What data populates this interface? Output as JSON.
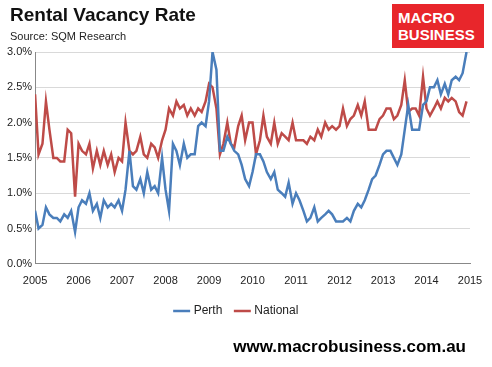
{
  "chart_data": {
    "type": "line",
    "title": "Rental Vacancy Rate",
    "subtitle": "Source: SQM Research",
    "annotations": [
      "MACRO",
      "BUSINESS",
      "www.macrobusiness.com.au"
    ],
    "x": [
      2005,
      2005.08,
      2005.17,
      2005.25,
      2005.33,
      2005.42,
      2005.5,
      2005.58,
      2005.67,
      2005.75,
      2005.83,
      2005.92,
      2006,
      2006.08,
      2006.17,
      2006.25,
      2006.33,
      2006.42,
      2006.5,
      2006.58,
      2006.67,
      2006.75,
      2006.83,
      2006.92,
      2007,
      2007.08,
      2007.17,
      2007.25,
      2007.33,
      2007.42,
      2007.5,
      2007.58,
      2007.67,
      2007.75,
      2007.83,
      2007.92,
      2008,
      2008.08,
      2008.17,
      2008.25,
      2008.33,
      2008.42,
      2008.5,
      2008.58,
      2008.67,
      2008.75,
      2008.83,
      2008.92,
      2009,
      2009.08,
      2009.17,
      2009.25,
      2009.33,
      2009.42,
      2009.5,
      2009.58,
      2009.67,
      2009.75,
      2009.83,
      2009.92,
      2010,
      2010.08,
      2010.17,
      2010.25,
      2010.33,
      2010.42,
      2010.5,
      2010.58,
      2010.67,
      2010.75,
      2010.83,
      2010.92,
      2011,
      2011.08,
      2011.17,
      2011.25,
      2011.33,
      2011.42,
      2011.5,
      2011.58,
      2011.67,
      2011.75,
      2011.83,
      2011.92,
      2012,
      2012.08,
      2012.17,
      2012.25,
      2012.33,
      2012.42,
      2012.5,
      2012.58,
      2012.67,
      2012.75,
      2012.83,
      2012.92,
      2013,
      2013.08,
      2013.17,
      2013.25,
      2013.33,
      2013.42,
      2013.5,
      2013.58,
      2013.67,
      2013.75,
      2013.83,
      2013.92,
      2014,
      2014.08,
      2014.17,
      2014.25,
      2014.33,
      2014.42,
      2014.5,
      2014.58,
      2014.67,
      2014.75,
      2014.83,
      2014.92
    ],
    "xlim": [
      2005,
      2015
    ],
    "xticks": [
      2005,
      2006,
      2007,
      2008,
      2009,
      2010,
      2011,
      2012,
      2013,
      2014,
      2015
    ],
    "ylim": [
      0,
      3
    ],
    "yticks": [
      {
        "value": 0,
        "label": "0.0%"
      },
      {
        "value": 0.5,
        "label": "0.5%"
      },
      {
        "value": 1,
        "label": "1.0%"
      },
      {
        "value": 1.5,
        "label": "1.5%"
      },
      {
        "value": 2,
        "label": "2.0%"
      },
      {
        "value": 2.5,
        "label": "2.5%"
      },
      {
        "value": 3,
        "label": "3.0%"
      }
    ],
    "grid": true,
    "legend": "bottom",
    "series": [
      {
        "name": "Perth",
        "color": "#4a7ebb",
        "values": [
          0.75,
          0.5,
          0.55,
          0.8,
          0.7,
          0.65,
          0.65,
          0.6,
          0.7,
          0.65,
          0.75,
          0.45,
          0.8,
          0.9,
          0.85,
          1.0,
          0.75,
          0.85,
          0.65,
          0.9,
          0.8,
          0.85,
          0.8,
          0.9,
          0.75,
          1.05,
          1.6,
          1.1,
          1.05,
          1.2,
          1.0,
          1.3,
          1.05,
          1.1,
          1.0,
          1.5,
          1.05,
          0.75,
          1.7,
          1.6,
          1.4,
          1.7,
          1.5,
          1.55,
          1.55,
          1.95,
          2.0,
          1.95,
          2.3,
          3.0,
          2.75,
          1.6,
          1.6,
          1.8,
          1.7,
          1.6,
          1.55,
          1.4,
          1.2,
          1.1,
          1.3,
          1.55,
          1.55,
          1.45,
          1.3,
          1.2,
          1.3,
          1.05,
          1.0,
          0.95,
          1.15,
          0.85,
          1.0,
          0.9,
          0.75,
          0.6,
          0.65,
          0.8,
          0.6,
          0.65,
          0.7,
          0.75,
          0.7,
          0.6,
          0.6,
          0.6,
          0.65,
          0.6,
          0.75,
          0.85,
          0.8,
          0.9,
          1.05,
          1.2,
          1.25,
          1.4,
          1.55,
          1.6,
          1.6,
          1.5,
          1.4,
          1.55,
          1.9,
          2.25,
          1.9,
          1.9,
          1.9,
          2.25,
          2.3,
          2.5,
          2.5,
          2.6,
          2.4,
          2.55,
          2.4,
          2.6,
          2.65,
          2.6,
          2.7,
          3.0
        ]
      },
      {
        "name": "National",
        "color": "#be4b48",
        "values": [
          2.4,
          1.55,
          1.7,
          2.3,
          1.9,
          1.5,
          1.5,
          1.45,
          1.45,
          1.9,
          1.85,
          0.95,
          1.7,
          1.6,
          1.55,
          1.7,
          1.35,
          1.6,
          1.4,
          1.6,
          1.4,
          1.55,
          1.3,
          1.5,
          1.45,
          2.0,
          1.6,
          1.55,
          1.6,
          1.8,
          1.55,
          1.5,
          1.7,
          1.65,
          1.5,
          1.75,
          1.9,
          2.2,
          2.1,
          2.3,
          2.2,
          2.25,
          2.1,
          2.2,
          2.1,
          2.2,
          2.15,
          2.3,
          2.55,
          2.5,
          2.2,
          1.55,
          1.7,
          2.0,
          1.7,
          1.65,
          1.95,
          2.1,
          1.75,
          2.0,
          2.0,
          1.55,
          1.75,
          2.1,
          1.8,
          1.7,
          2.0,
          1.7,
          1.85,
          1.8,
          1.75,
          2.0,
          1.75,
          1.75,
          1.75,
          1.7,
          1.8,
          1.75,
          1.9,
          1.8,
          2.0,
          1.9,
          1.95,
          1.9,
          1.95,
          2.2,
          1.95,
          2.05,
          2.1,
          2.25,
          2.1,
          2.3,
          1.9,
          1.9,
          1.9,
          2.05,
          2.1,
          2.2,
          2.2,
          2.05,
          2.1,
          2.25,
          2.6,
          2.15,
          2.2,
          2.2,
          2.1,
          2.65,
          2.2,
          2.1,
          2.2,
          2.3,
          2.2,
          2.35,
          2.3,
          2.35,
          2.3,
          2.15,
          2.1,
          2.3
        ]
      }
    ]
  }
}
